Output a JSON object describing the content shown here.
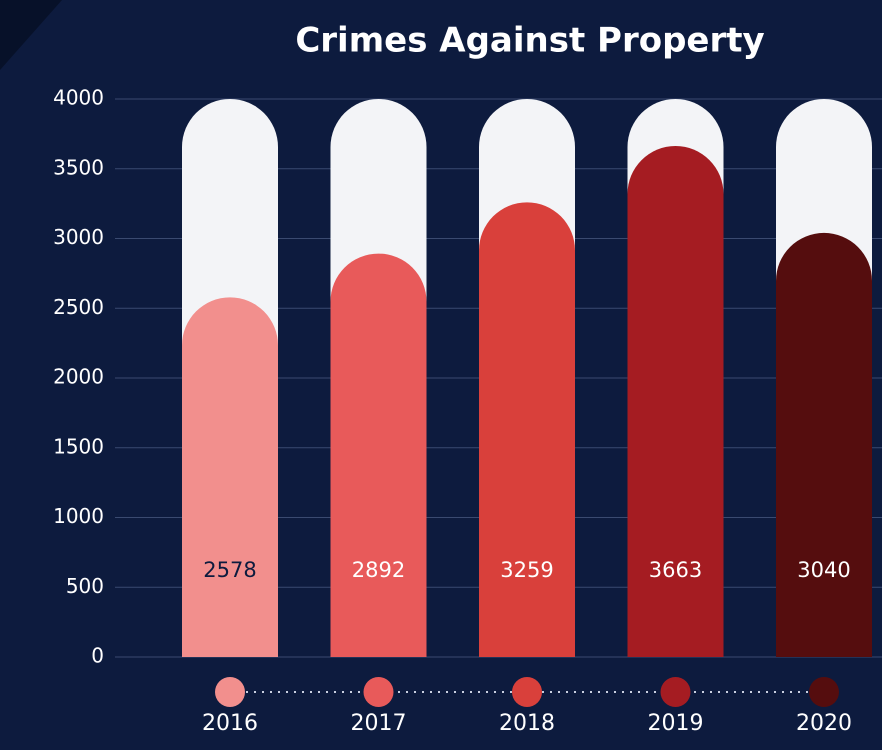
{
  "chart_data": {
    "type": "bar",
    "title": "Crimes Against Property",
    "categories": [
      "2016",
      "2017",
      "2018",
      "2019",
      "2020"
    ],
    "values": [
      2578,
      2892,
      3259,
      3663,
      3040
    ],
    "colors": [
      "#f28f8d",
      "#e85a5a",
      "#d9403b",
      "#a51c22",
      "#550d0e"
    ],
    "ylim": [
      0,
      4000
    ],
    "yticks": [
      0,
      500,
      1000,
      1500,
      2000,
      2500,
      3000,
      3500,
      4000
    ],
    "grid": true
  }
}
